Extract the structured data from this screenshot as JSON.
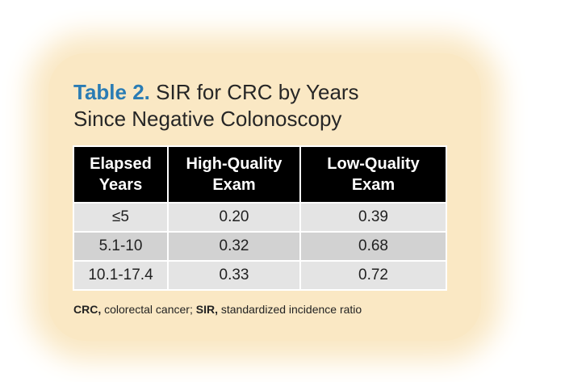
{
  "title": {
    "lead": "Table 2.",
    "line1": "SIR for CRC by Years",
    "line2": "Since Negative Colonoscopy"
  },
  "table": {
    "headers": [
      {
        "line1": "Elapsed",
        "line2": "Years"
      },
      {
        "line1": "High-Quality",
        "line2": "Exam"
      },
      {
        "line1": "Low-Quality",
        "line2": "Exam"
      }
    ],
    "rows": [
      {
        "years": "≤5",
        "high": "0.20",
        "low": "0.39"
      },
      {
        "years": "5.1-10",
        "high": "0.32",
        "low": "0.68"
      },
      {
        "years": "10.1-17.4",
        "high": "0.33",
        "low": "0.72"
      }
    ]
  },
  "footnote": {
    "abbr1": "CRC,",
    "def1": "colorectal cancer;",
    "abbr2": "SIR,",
    "def2": "standardized incidence ratio"
  }
}
